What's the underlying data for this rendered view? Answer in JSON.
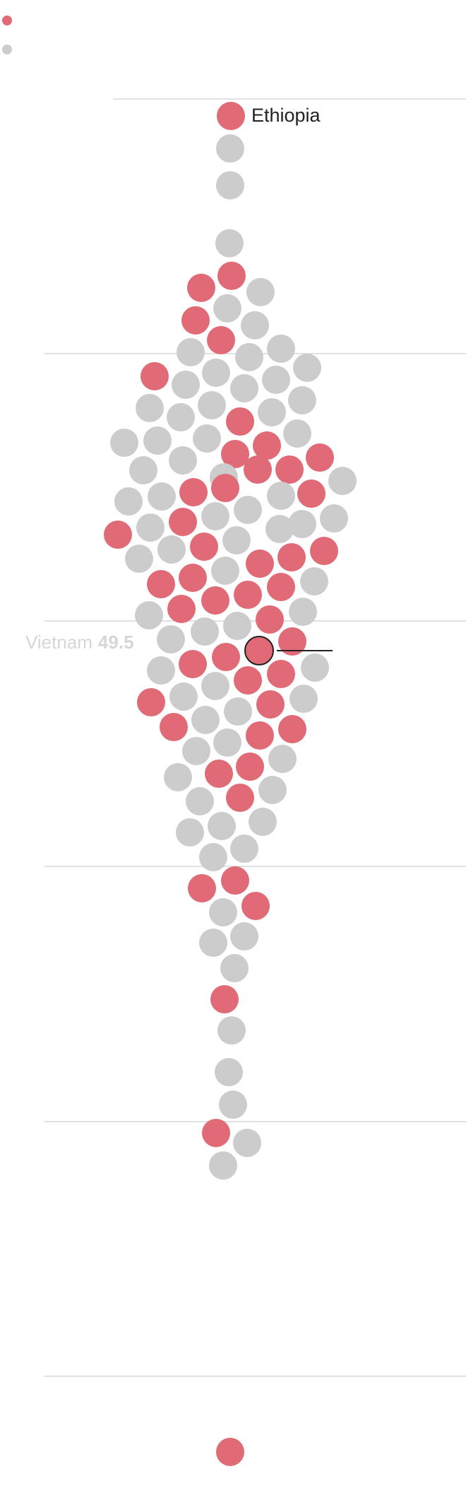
{
  "chart_data": {
    "type": "scatter",
    "title": "",
    "xlabel": "",
    "ylabel": "",
    "colors": {
      "highlight": "#e06a76",
      "other": "#cccccc",
      "hover_outline": "#222222"
    },
    "legend": [
      {
        "name": "",
        "color": "#e06a76"
      },
      {
        "name": "",
        "color": "#cccccc"
      }
    ],
    "labels": [
      {
        "country": "Ethiopia"
      }
    ],
    "hover": {
      "country": "Vietnam",
      "value": "49.5"
    }
  }
}
